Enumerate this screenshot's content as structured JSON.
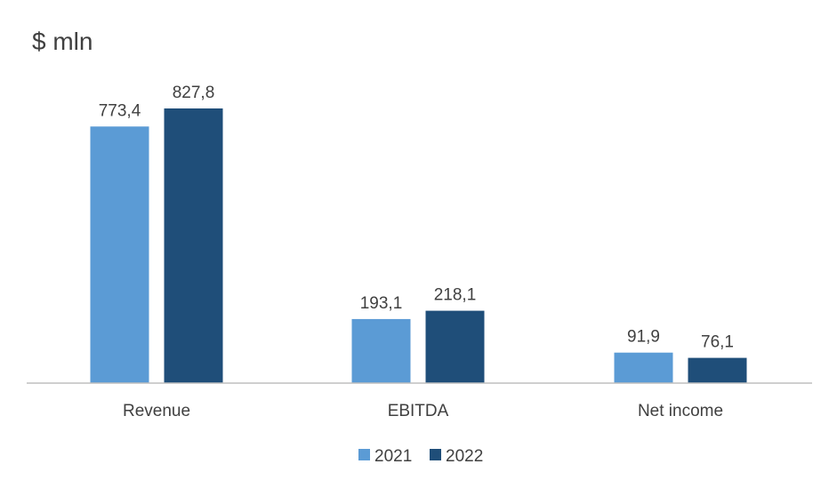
{
  "chart_data": {
    "type": "bar",
    "title": "$ mln",
    "categories": [
      "Revenue",
      "EBITDA",
      "Net income"
    ],
    "series": [
      {
        "name": "2021",
        "color": "#5B9BD5",
        "values": [
          773.4,
          193.1,
          91.9
        ],
        "labels": [
          "773,4",
          "193,1",
          "91,9"
        ]
      },
      {
        "name": "2022",
        "color": "#1F4E79",
        "values": [
          827.8,
          218.1,
          76.1
        ],
        "labels": [
          "827,8",
          "218,1",
          "76,1"
        ]
      }
    ],
    "ylim": [
      0,
      850
    ],
    "grid": false,
    "legend_position": "bottom",
    "axis_color": "#BFBFBF"
  }
}
